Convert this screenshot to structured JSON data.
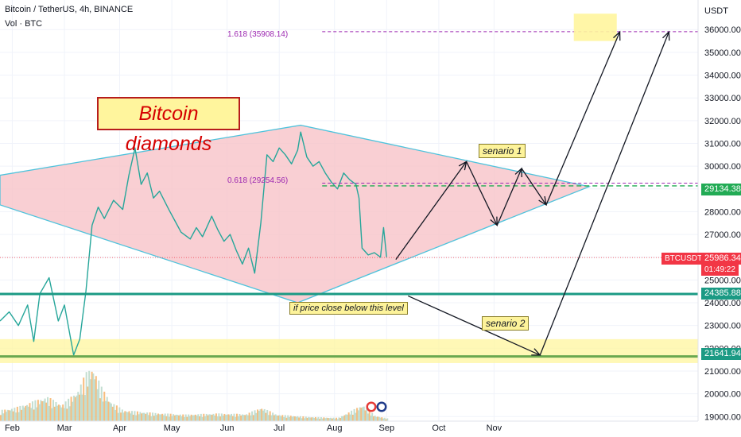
{
  "header": {
    "title": "Bitcoin / TetherUS, 4h, BINANCE",
    "indicator": "Vol · BTC",
    "currency": "USDT"
  },
  "annotations": {
    "title_box": "Bitcoin diamonds",
    "senario1": "senario 1",
    "senario2": "senario 2",
    "close_below": "if price close below this level",
    "fib_1618": "1.618 (35908.14)",
    "fib_0618": "0.618 (29254.56)"
  },
  "price_tags": {
    "symbol": "BTCUSDT",
    "last_price": "25986.34",
    "countdown": "01:49:22",
    "level_upper": "29134.38",
    "level_support": "24385.88",
    "level_lower": "21641.94"
  },
  "colors": {
    "up": "#26a69a",
    "down": "#ef5350",
    "diamond_fill": "#f8c3c8",
    "diamond_stroke": "#4fc3dc",
    "support_line": "#1b9a84",
    "lower_band": "#fff59d",
    "fib": "#9c27b0",
    "price_tag": "#f23645"
  },
  "chart_data": {
    "type": "candlestick",
    "ylim": [
      18800,
      37300
    ],
    "yticks": [
      19000,
      20000,
      21000,
      22000,
      23000,
      24000,
      25000,
      26000,
      27000,
      28000,
      29000,
      30000,
      31000,
      32000,
      33000,
      34000,
      35000,
      36000
    ],
    "xticks": [
      {
        "label": "Feb",
        "t": 0.4
      },
      {
        "label": "Mar",
        "t": 2.1
      },
      {
        "label": "Apr",
        "t": 3.9
      },
      {
        "label": "May",
        "t": 5.6
      },
      {
        "label": "Jun",
        "t": 7.4
      },
      {
        "label": "Jul",
        "t": 9.1
      },
      {
        "label": "Aug",
        "t": 10.9
      },
      {
        "label": "Sep",
        "t": 12.6
      },
      {
        "label": "Oct",
        "t": 14.3
      },
      {
        "label": "Nov",
        "t": 16.1
      }
    ],
    "price_path": [
      [
        0.0,
        23200
      ],
      [
        0.3,
        23600
      ],
      [
        0.6,
        23000
      ],
      [
        0.9,
        23900
      ],
      [
        1.1,
        22300
      ],
      [
        1.3,
        24400
      ],
      [
        1.6,
        25100
      ],
      [
        1.9,
        23200
      ],
      [
        2.1,
        23900
      ],
      [
        2.4,
        21700
      ],
      [
        2.6,
        22400
      ],
      [
        2.8,
        24500
      ],
      [
        3.0,
        27400
      ],
      [
        3.2,
        28200
      ],
      [
        3.4,
        27700
      ],
      [
        3.7,
        28500
      ],
      [
        4.0,
        28100
      ],
      [
        4.2,
        29600
      ],
      [
        4.4,
        30800
      ],
      [
        4.6,
        29200
      ],
      [
        4.8,
        29700
      ],
      [
        5.0,
        28600
      ],
      [
        5.2,
        28900
      ],
      [
        5.5,
        28100
      ],
      [
        5.7,
        27600
      ],
      [
        5.9,
        27100
      ],
      [
        6.2,
        26800
      ],
      [
        6.4,
        27300
      ],
      [
        6.6,
        26900
      ],
      [
        6.9,
        27800
      ],
      [
        7.1,
        27200
      ],
      [
        7.3,
        26700
      ],
      [
        7.5,
        27000
      ],
      [
        7.7,
        26300
      ],
      [
        7.9,
        25700
      ],
      [
        8.1,
        26400
      ],
      [
        8.3,
        25300
      ],
      [
        8.5,
        27500
      ],
      [
        8.7,
        30500
      ],
      [
        8.9,
        30200
      ],
      [
        9.1,
        30800
      ],
      [
        9.3,
        30500
      ],
      [
        9.5,
        30100
      ],
      [
        9.7,
        30700
      ],
      [
        9.8,
        31500
      ],
      [
        10.0,
        30400
      ],
      [
        10.2,
        30000
      ],
      [
        10.4,
        30200
      ],
      [
        10.6,
        29700
      ],
      [
        10.8,
        29300
      ],
      [
        11.0,
        29000
      ],
      [
        11.2,
        29700
      ],
      [
        11.4,
        29400
      ],
      [
        11.6,
        29200
      ],
      [
        11.7,
        28600
      ],
      [
        11.8,
        26400
      ],
      [
        12.0,
        26100
      ],
      [
        12.2,
        26200
      ],
      [
        12.4,
        26000
      ],
      [
        12.5,
        27300
      ],
      [
        12.6,
        26000
      ]
    ],
    "volume_profile": [
      [
        0.0,
        0.2
      ],
      [
        0.5,
        0.25
      ],
      [
        1.0,
        0.35
      ],
      [
        1.5,
        0.45
      ],
      [
        2.0,
        0.3
      ],
      [
        2.5,
        0.55
      ],
      [
        2.8,
        0.9
      ],
      [
        3.0,
        1.0
      ],
      [
        3.3,
        0.6
      ],
      [
        3.6,
        0.35
      ],
      [
        4.0,
        0.2
      ],
      [
        5.0,
        0.15
      ],
      [
        6.0,
        0.12
      ],
      [
        7.0,
        0.14
      ],
      [
        8.0,
        0.13
      ],
      [
        8.5,
        0.25
      ],
      [
        9.0,
        0.12
      ],
      [
        10.0,
        0.08
      ],
      [
        11.0,
        0.06
      ],
      [
        11.8,
        0.3
      ],
      [
        12.2,
        0.1
      ],
      [
        12.6,
        0.05
      ]
    ],
    "diamond": [
      [
        0.0,
        29600
      ],
      [
        9.8,
        31800
      ],
      [
        19.2,
        29100
      ],
      [
        9.7,
        24000
      ],
      [
        0.0,
        28300
      ]
    ],
    "levels": {
      "fib_1618": 35908.14,
      "fib_0618": 29254.56,
      "upper": 29134.38,
      "last": 25986.34,
      "support": 24385.88,
      "lower": 21641.94
    },
    "lower_band": [
      21350,
      22400
    ],
    "target_box": {
      "t": [
        18.7,
        20.1
      ],
      "y": [
        35500,
        36700
      ]
    },
    "scenario1_path": [
      [
        12.9,
        25900
      ],
      [
        15.2,
        30200
      ],
      [
        16.2,
        27400
      ],
      [
        17.0,
        29900
      ],
      [
        17.8,
        28300
      ],
      [
        20.2,
        35900
      ]
    ],
    "scenario2_path": [
      [
        13.3,
        24300
      ],
      [
        17.6,
        21700
      ],
      [
        21.8,
        35900
      ]
    ]
  }
}
